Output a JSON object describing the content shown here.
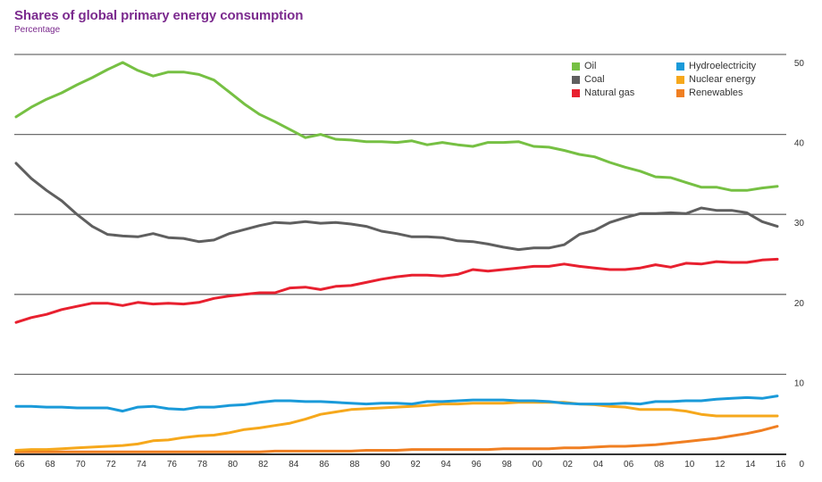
{
  "chart_data": {
    "type": "line",
    "title": "Shares of global primary energy consumption",
    "subtitle": "Percentage",
    "xlabel": "",
    "ylabel": "Percentage",
    "ylim": [
      0,
      50
    ],
    "yticks": [
      0,
      10,
      20,
      30,
      40,
      50
    ],
    "y_axis_side": "right",
    "grid": true,
    "legend_position": "top-right",
    "x": [
      1966,
      1967,
      1968,
      1969,
      1970,
      1971,
      1972,
      1973,
      1974,
      1975,
      1976,
      1977,
      1978,
      1979,
      1980,
      1981,
      1982,
      1983,
      1984,
      1985,
      1986,
      1987,
      1988,
      1989,
      1990,
      1991,
      1992,
      1993,
      1994,
      1995,
      1996,
      1997,
      1998,
      1999,
      2000,
      2001,
      2002,
      2003,
      2004,
      2005,
      2006,
      2007,
      2008,
      2009,
      2010,
      2011,
      2012,
      2013,
      2014,
      2015,
      2016
    ],
    "xtick_labels": [
      "66",
      "68",
      "70",
      "72",
      "74",
      "76",
      "78",
      "80",
      "82",
      "84",
      "86",
      "88",
      "90",
      "92",
      "94",
      "96",
      "98",
      "00",
      "02",
      "04",
      "06",
      "08",
      "10",
      "12",
      "14",
      "16"
    ],
    "series": [
      {
        "name": "Oil",
        "color": "#76c043",
        "values": [
          42.2,
          43.4,
          44.4,
          45.2,
          46.2,
          47.1,
          48.1,
          49.0,
          48.0,
          47.3,
          47.8,
          47.8,
          47.5,
          46.8,
          45.3,
          43.8,
          42.5,
          41.6,
          40.6,
          39.6,
          40.0,
          39.4,
          39.3,
          39.1,
          39.1,
          39.0,
          39.2,
          38.7,
          39.0,
          38.7,
          38.5,
          39.0,
          39.0,
          39.1,
          38.5,
          38.4,
          38.0,
          37.5,
          37.2,
          36.5,
          35.9,
          35.4,
          34.7,
          34.6,
          34.0,
          33.4,
          33.4,
          33.0,
          33.0,
          33.3,
          33.5
        ]
      },
      {
        "name": "Coal",
        "color": "#5f5f5f",
        "values": [
          36.4,
          34.5,
          33.0,
          31.7,
          30.0,
          28.5,
          27.5,
          27.3,
          27.2,
          27.6,
          27.1,
          27.0,
          26.6,
          26.8,
          27.6,
          28.1,
          28.6,
          29.0,
          28.9,
          29.1,
          28.9,
          29.0,
          28.8,
          28.5,
          27.9,
          27.6,
          27.2,
          27.2,
          27.1,
          26.7,
          26.6,
          26.3,
          25.9,
          25.6,
          25.8,
          25.8,
          26.2,
          27.5,
          28.0,
          29.0,
          29.6,
          30.1,
          30.1,
          30.2,
          30.1,
          30.8,
          30.5,
          30.5,
          30.2,
          29.1,
          28.5
        ]
      },
      {
        "name": "Natural gas",
        "color": "#e8202f",
        "values": [
          16.5,
          17.1,
          17.5,
          18.1,
          18.5,
          18.9,
          18.9,
          18.6,
          19.0,
          18.8,
          18.9,
          18.8,
          19.0,
          19.5,
          19.8,
          20.0,
          20.2,
          20.2,
          20.8,
          20.9,
          20.6,
          21.0,
          21.1,
          21.5,
          21.9,
          22.2,
          22.4,
          22.4,
          22.3,
          22.5,
          23.1,
          22.9,
          23.1,
          23.3,
          23.5,
          23.5,
          23.8,
          23.5,
          23.3,
          23.1,
          23.1,
          23.3,
          23.7,
          23.4,
          23.9,
          23.8,
          24.1,
          24.0,
          24.0,
          24.3,
          24.4
        ]
      },
      {
        "name": "Hydroelectricity",
        "color": "#1a9ad9",
        "values": [
          6.0,
          6.0,
          5.9,
          5.9,
          5.8,
          5.8,
          5.8,
          5.4,
          5.9,
          6.0,
          5.7,
          5.6,
          5.9,
          5.9,
          6.1,
          6.2,
          6.5,
          6.7,
          6.7,
          6.6,
          6.6,
          6.5,
          6.4,
          6.3,
          6.4,
          6.4,
          6.3,
          6.6,
          6.6,
          6.7,
          6.8,
          6.8,
          6.8,
          6.7,
          6.7,
          6.6,
          6.4,
          6.3,
          6.3,
          6.3,
          6.4,
          6.3,
          6.6,
          6.6,
          6.7,
          6.7,
          6.9,
          7.0,
          7.1,
          7.0,
          7.3
        ]
      },
      {
        "name": "Nuclear energy",
        "color": "#f6a81c",
        "values": [
          0.5,
          0.6,
          0.6,
          0.7,
          0.8,
          0.9,
          1.0,
          1.1,
          1.3,
          1.7,
          1.8,
          2.1,
          2.3,
          2.4,
          2.7,
          3.1,
          3.3,
          3.6,
          3.9,
          4.4,
          5.0,
          5.3,
          5.6,
          5.7,
          5.8,
          5.9,
          6.0,
          6.1,
          6.3,
          6.3,
          6.4,
          6.4,
          6.4,
          6.5,
          6.5,
          6.5,
          6.5,
          6.3,
          6.2,
          6.0,
          5.9,
          5.6,
          5.6,
          5.6,
          5.4,
          5.0,
          4.8,
          4.8,
          4.8,
          4.8,
          4.8
        ]
      },
      {
        "name": "Renewables",
        "color": "#f07f22",
        "values": [
          0.3,
          0.3,
          0.3,
          0.3,
          0.3,
          0.3,
          0.3,
          0.3,
          0.3,
          0.3,
          0.3,
          0.3,
          0.3,
          0.3,
          0.3,
          0.3,
          0.3,
          0.4,
          0.4,
          0.4,
          0.4,
          0.4,
          0.4,
          0.5,
          0.5,
          0.5,
          0.6,
          0.6,
          0.6,
          0.6,
          0.6,
          0.6,
          0.7,
          0.7,
          0.7,
          0.7,
          0.8,
          0.8,
          0.9,
          1.0,
          1.0,
          1.1,
          1.2,
          1.4,
          1.6,
          1.8,
          2.0,
          2.3,
          2.6,
          3.0,
          3.5
        ]
      }
    ]
  },
  "legend": {
    "items": [
      {
        "label": "Oil",
        "color": "#76c043"
      },
      {
        "label": "Coal",
        "color": "#5f5f5f"
      },
      {
        "label": "Natural gas",
        "color": "#e8202f"
      },
      {
        "label": "Hydroelectricity",
        "color": "#1a9ad9"
      },
      {
        "label": "Nuclear energy",
        "color": "#f6a81c"
      },
      {
        "label": "Renewables",
        "color": "#f07f22"
      }
    ]
  },
  "colors": {
    "title": "#7b2a8e",
    "gridline": "#6d6d6d",
    "axis": "#333333"
  }
}
